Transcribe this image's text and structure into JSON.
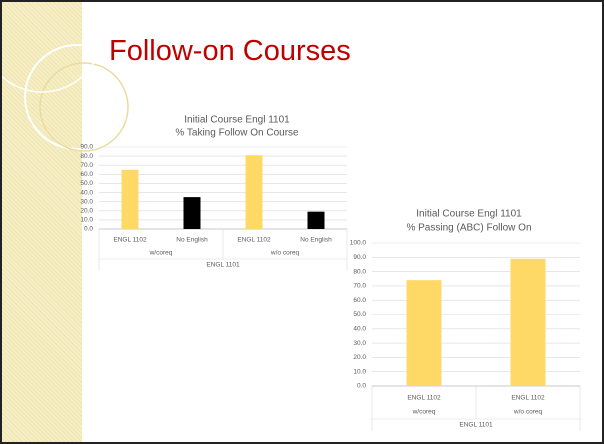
{
  "slide_title": "Follow-on Courses",
  "chart_data": [
    {
      "type": "bar",
      "title": "Initial Course Engl 1101",
      "subtitle": "% Taking Follow On Course",
      "categories": [
        "ENGL 1102",
        "No English",
        "ENGL 1102",
        "No English"
      ],
      "groups": [
        "w/coreq",
        "w/o coreq"
      ],
      "group_title": "ENGL 1101",
      "values": [
        65,
        35,
        81,
        19
      ],
      "colors": [
        "#ffd966",
        "#000000",
        "#ffd966",
        "#000000"
      ],
      "ylim": [
        0,
        90
      ],
      "yticks": [
        {
          "value": 0,
          "label": "0.0"
        },
        {
          "value": 10,
          "label": "10.0"
        },
        {
          "value": 20,
          "label": "20.0"
        },
        {
          "value": 30,
          "label": "30.0"
        },
        {
          "value": 40,
          "label": "40.0"
        },
        {
          "value": 50,
          "label": "50.0"
        },
        {
          "value": 60,
          "label": "60.0"
        },
        {
          "value": 70,
          "label": "70.0"
        },
        {
          "value": 80,
          "label": "80.0"
        },
        {
          "value": 90,
          "label": "90.0"
        }
      ],
      "grid": true
    },
    {
      "type": "bar",
      "title": "Initial Course Engl 1101",
      "subtitle": "% Passing (ABC) Follow On",
      "categories": [
        "ENGL 1102",
        "ENGL 1102"
      ],
      "groups": [
        "w/coreq",
        "w/o coreq"
      ],
      "group_title": "ENGL 1101",
      "values": [
        74,
        89
      ],
      "colors": [
        "#ffd966",
        "#ffd966"
      ],
      "ylim": [
        0,
        100
      ],
      "yticks": [
        {
          "value": 0,
          "label": "0.0"
        },
        {
          "value": 10,
          "label": "10.0"
        },
        {
          "value": 20,
          "label": "20.0"
        },
        {
          "value": 30,
          "label": "30.0"
        },
        {
          "value": 40,
          "label": "40.0"
        },
        {
          "value": 50,
          "label": "50.0"
        },
        {
          "value": 60,
          "label": "60.0"
        },
        {
          "value": 70,
          "label": "70.0"
        },
        {
          "value": 80,
          "label": "80.0"
        },
        {
          "value": 90,
          "label": "90.0"
        },
        {
          "value": 100,
          "label": "100.0"
        }
      ],
      "grid": true
    }
  ]
}
